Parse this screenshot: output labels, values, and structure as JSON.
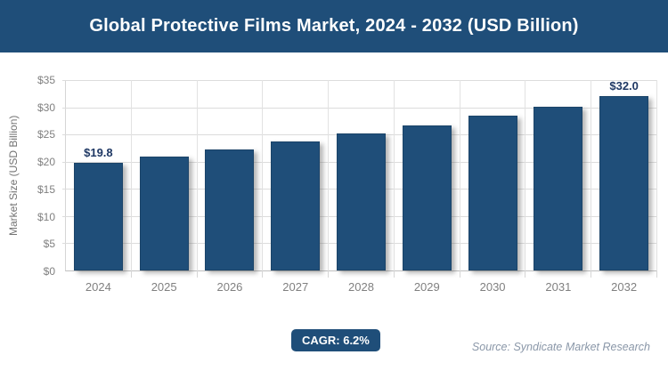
{
  "header": {
    "title": "Global Protective Films Market, 2024 - 2032 (USD Billion)"
  },
  "chart_data": {
    "type": "bar",
    "title": "Global Protective Films Market, 2024 - 2032 (USD Billion)",
    "categories": [
      "2024",
      "2025",
      "2026",
      "2027",
      "2028",
      "2029",
      "2030",
      "2031",
      "2032"
    ],
    "values": [
      19.8,
      21.0,
      22.3,
      23.7,
      25.2,
      26.7,
      28.4,
      30.1,
      32.0
    ],
    "bar_labels": [
      "$19.8",
      "",
      "",
      "",
      "",
      "",
      "",
      "",
      "$32.0"
    ],
    "xlabel": "",
    "ylabel": "Market Size (USD Billion)",
    "ylim": [
      0,
      35
    ],
    "y_ticks": [
      0,
      5,
      10,
      15,
      20,
      25,
      30,
      35
    ],
    "y_tick_labels": [
      "$0",
      "$5",
      "$10",
      "$15",
      "$20",
      "$25",
      "$30",
      "$35"
    ],
    "grid": "horizontal and vertical, light gray",
    "legend": "none",
    "bar_color": "#1f4e79"
  },
  "footer": {
    "cagr_label": "CAGR: 6.2%",
    "source": "Source: Syndicate Market Research"
  },
  "colors": {
    "header_background": "#1f4e79",
    "header_text": "#ffffff",
    "bar_fill": "#1f4e79",
    "value_label": "#1f3864",
    "axis_text": "#808080",
    "gridline": "#dcdcdc",
    "source_text": "#8a97a8",
    "badge_background": "#1f4e79"
  }
}
